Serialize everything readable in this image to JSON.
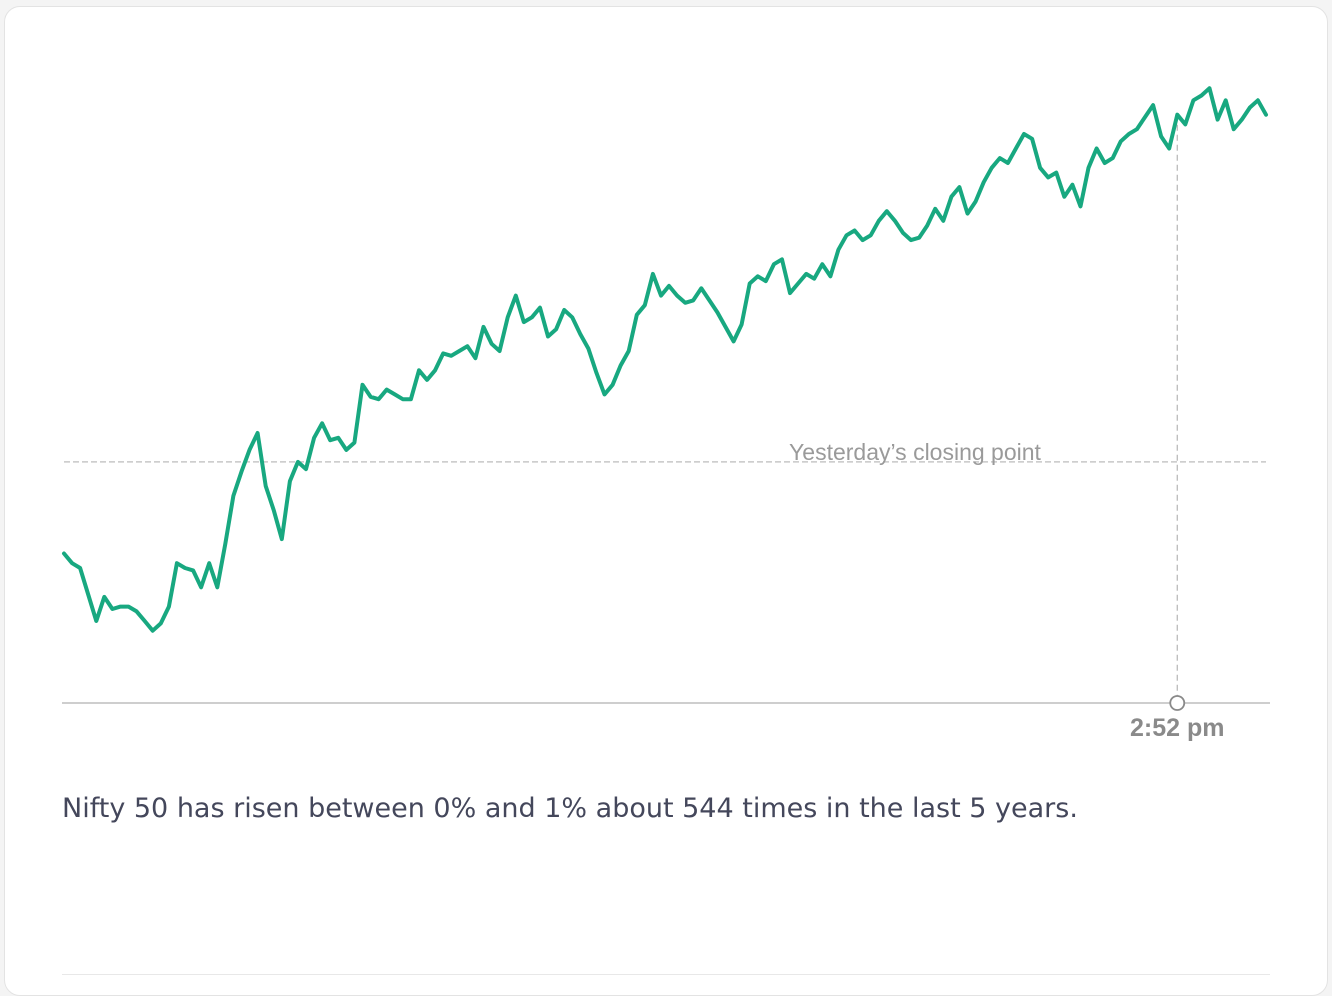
{
  "chart_data": {
    "type": "line",
    "series": [
      {
        "values": [
          -0.38,
          -0.42,
          -0.44,
          -0.55,
          -0.66,
          -0.56,
          -0.61,
          -0.6,
          -0.6,
          -0.62,
          -0.66,
          -0.7,
          -0.67,
          -0.6,
          -0.42,
          -0.44,
          -0.45,
          -0.52,
          -0.42,
          -0.52,
          -0.34,
          -0.14,
          -0.04,
          0.05,
          0.12,
          -0.1,
          -0.2,
          -0.32,
          -0.08,
          0.0,
          -0.03,
          0.1,
          0.16,
          0.09,
          0.1,
          0.05,
          0.08,
          0.32,
          0.27,
          0.26,
          0.3,
          0.28,
          0.26,
          0.26,
          0.38,
          0.34,
          0.38,
          0.45,
          0.44,
          0.46,
          0.48,
          0.43,
          0.56,
          0.49,
          0.46,
          0.6,
          0.69,
          0.58,
          0.6,
          0.64,
          0.52,
          0.55,
          0.63,
          0.6,
          0.53,
          0.47,
          0.37,
          0.28,
          0.32,
          0.4,
          0.46,
          0.61,
          0.65,
          0.78,
          0.69,
          0.73,
          0.69,
          0.66,
          0.67,
          0.72,
          0.67,
          0.62,
          0.56,
          0.5,
          0.57,
          0.74,
          0.77,
          0.75,
          0.82,
          0.84,
          0.7,
          0.74,
          0.78,
          0.76,
          0.82,
          0.77,
          0.88,
          0.94,
          0.96,
          0.92,
          0.94,
          1.0,
          1.04,
          1.0,
          0.95,
          0.92,
          0.93,
          0.98,
          1.05,
          1.0,
          1.1,
          1.14,
          1.03,
          1.08,
          1.16,
          1.22,
          1.26,
          1.24,
          1.3,
          1.36,
          1.34,
          1.22,
          1.18,
          1.2,
          1.1,
          1.15,
          1.06,
          1.22,
          1.3,
          1.24,
          1.26,
          1.33,
          1.36,
          1.38,
          1.43,
          1.48,
          1.35,
          1.3,
          1.44,
          1.4,
          1.5,
          1.52,
          1.55,
          1.42,
          1.5,
          1.38,
          1.42,
          1.47,
          1.5,
          1.44
        ]
      }
    ],
    "reference_lines": [
      {
        "y": 0,
        "label": "Yesterday’s closing point"
      }
    ],
    "marker": {
      "index": 138,
      "label": "2:52 pm"
    },
    "ylim": [
      -1,
      1.75
    ],
    "grid": false,
    "colors": {
      "line": "#18a880",
      "reference": "#c8c8c8",
      "axis": "#bdbdbd"
    }
  },
  "summary": {
    "text": "Nifty 50 has risen between 0% and 1% about 544 times in the last 5 years."
  }
}
